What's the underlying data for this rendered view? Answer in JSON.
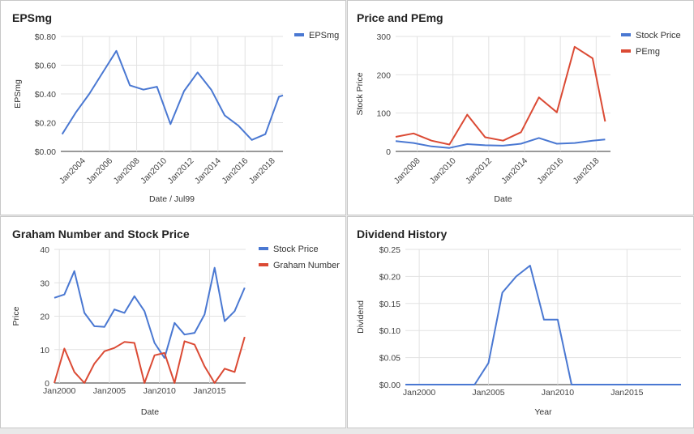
{
  "chart_data": [
    {
      "type": "line",
      "title": "EPSmg",
      "xlabel": "Date / Jul99",
      "ylabel": "EPSmg",
      "ylim": [
        0,
        0.8
      ],
      "xlim": [
        2002.4,
        2018.8
      ],
      "yticks": [
        "$0.00",
        "$0.20",
        "$0.40",
        "$0.60",
        "$0.80"
      ],
      "ytick_values": [
        0,
        0.2,
        0.4,
        0.6,
        0.8
      ],
      "xticks": [
        "Jan2004",
        "Jan2006",
        "Jan2008",
        "Jan2010",
        "Jan2012",
        "Jan2014",
        "Jan2016",
        "Jan2018"
      ],
      "xtick_values": [
        2004,
        2006,
        2008,
        2010,
        2012,
        2014,
        2016,
        2018
      ],
      "legend_position": "top-right",
      "series": [
        {
          "name": "EPSmg",
          "color": "#4a78d2",
          "x": [
            2002.5,
            2003.5,
            2004.5,
            2005.5,
            2006.5,
            2007.5,
            2008.5,
            2009.5,
            2010.5,
            2011.5,
            2012.5,
            2013.5,
            2014.5,
            2015.5,
            2016.5,
            2017.5,
            2018.5,
            2018.8
          ],
          "values": [
            0.12,
            0.27,
            0.4,
            0.55,
            0.7,
            0.46,
            0.43,
            0.45,
            0.19,
            0.42,
            0.55,
            0.43,
            0.25,
            0.18,
            0.08,
            0.12,
            0.38,
            0.39
          ]
        }
      ]
    },
    {
      "type": "line",
      "title": "Price and PEmg",
      "xlabel": "Date",
      "ylabel": "Stock Price",
      "ylim": [
        0,
        300
      ],
      "xlim": [
        2006.8,
        2018.8
      ],
      "yticks": [
        "0",
        "100",
        "200",
        "300"
      ],
      "ytick_values": [
        0,
        100,
        200,
        300
      ],
      "xticks": [
        "Jan2008",
        "Jan2010",
        "Jan2012",
        "Jan2014",
        "Jan2016",
        "Jan2018"
      ],
      "xtick_values": [
        2008,
        2010,
        2012,
        2014,
        2016,
        2018
      ],
      "legend_position": "top-right",
      "series": [
        {
          "name": "Stock Price",
          "color": "#4a78d2",
          "x": [
            2006.8,
            2007.8,
            2008.8,
            2009.8,
            2010.8,
            2011.8,
            2012.8,
            2013.8,
            2014.8,
            2015.8,
            2016.8,
            2017.8,
            2018.5
          ],
          "values": [
            27,
            22,
            13,
            9,
            19,
            16,
            15,
            20,
            35,
            20,
            22,
            28,
            31
          ]
        },
        {
          "name": "PEmg",
          "color": "#db4a34",
          "x": [
            2006.8,
            2007.8,
            2008.8,
            2009.8,
            2010.8,
            2011.8,
            2012.8,
            2013.8,
            2014.8,
            2015.8,
            2016.8,
            2017.8,
            2018.5
          ],
          "values": [
            38,
            47,
            28,
            18,
            96,
            37,
            28,
            50,
            141,
            102,
            273,
            243,
            78
          ]
        }
      ]
    },
    {
      "type": "line",
      "title": "Graham Number and Stock Price",
      "xlabel": "Date",
      "ylabel": "Price",
      "ylim": [
        0,
        40
      ],
      "xlim": [
        1999.5,
        2018.6
      ],
      "yticks": [
        "0",
        "10",
        "20",
        "30",
        "40"
      ],
      "ytick_values": [
        0,
        10,
        20,
        30,
        40
      ],
      "xticks": [
        "Jan2000",
        "Jan2005",
        "Jan2010",
        "Jan2015"
      ],
      "xtick_values": [
        2000,
        2005,
        2010,
        2015
      ],
      "legend_position": "top-right",
      "series": [
        {
          "name": "Stock Price",
          "color": "#4a78d2",
          "x": [
            1999.5,
            2000.5,
            2001.5,
            2002.5,
            2003.5,
            2004.5,
            2005.5,
            2006.5,
            2007.5,
            2008.5,
            2009.5,
            2010.5,
            2011.5,
            2012.5,
            2013.5,
            2014.5,
            2015.5,
            2016.5,
            2017.5,
            2018.5
          ],
          "values": [
            25.5,
            26.5,
            33.5,
            21,
            17,
            16.8,
            22,
            21,
            26,
            21.5,
            12,
            7.5,
            18,
            14.5,
            15,
            20.5,
            34.5,
            18.5,
            21.5,
            28.5
          ]
        },
        {
          "name": "Graham Number",
          "color": "#db4a34",
          "x": [
            1999.5,
            2000.5,
            2001.5,
            2002.5,
            2003.5,
            2004.5,
            2005.5,
            2006.5,
            2007.5,
            2008.5,
            2009.5,
            2010.5,
            2011.5,
            2012.5,
            2013.5,
            2014.5,
            2015.5,
            2016.5,
            2017.5,
            2018.5
          ],
          "values": [
            0,
            10.3,
            3.3,
            0,
            5.8,
            9.5,
            10.5,
            12.3,
            12,
            0,
            8.3,
            9,
            0,
            12.5,
            11.5,
            5,
            0,
            4.3,
            3.3,
            13.8
          ]
        }
      ]
    },
    {
      "type": "line",
      "title": "Dividend History",
      "xlabel": "Year",
      "ylabel": "Dividend",
      "ylim": [
        0,
        0.25
      ],
      "xlim": [
        1999,
        2018.9
      ],
      "yticks": [
        "$0.00",
        "$0.05",
        "$0.10",
        "$0.15",
        "$0.20",
        "$0.25"
      ],
      "ytick_values": [
        0,
        0.05,
        0.1,
        0.15,
        0.2,
        0.25
      ],
      "xticks": [
        "Jan2000",
        "Jan2005",
        "Jan2010",
        "Jan2015"
      ],
      "xtick_values": [
        2000,
        2005,
        2010,
        2015
      ],
      "legend_position": "none",
      "series": [
        {
          "color": "#4a78d2",
          "x": [
            1999,
            2000,
            2001,
            2002,
            2003,
            2004,
            2005,
            2006,
            2007,
            2008,
            2009,
            2010,
            2011,
            2012,
            2013,
            2014,
            2015,
            2016,
            2017,
            2018,
            2018.9
          ],
          "values": [
            0,
            0,
            0,
            0,
            0,
            0,
            0.04,
            0.17,
            0.2,
            0.22,
            0.12,
            0.12,
            0,
            0,
            0,
            0,
            0,
            0,
            0,
            0,
            0
          ]
        }
      ]
    }
  ]
}
